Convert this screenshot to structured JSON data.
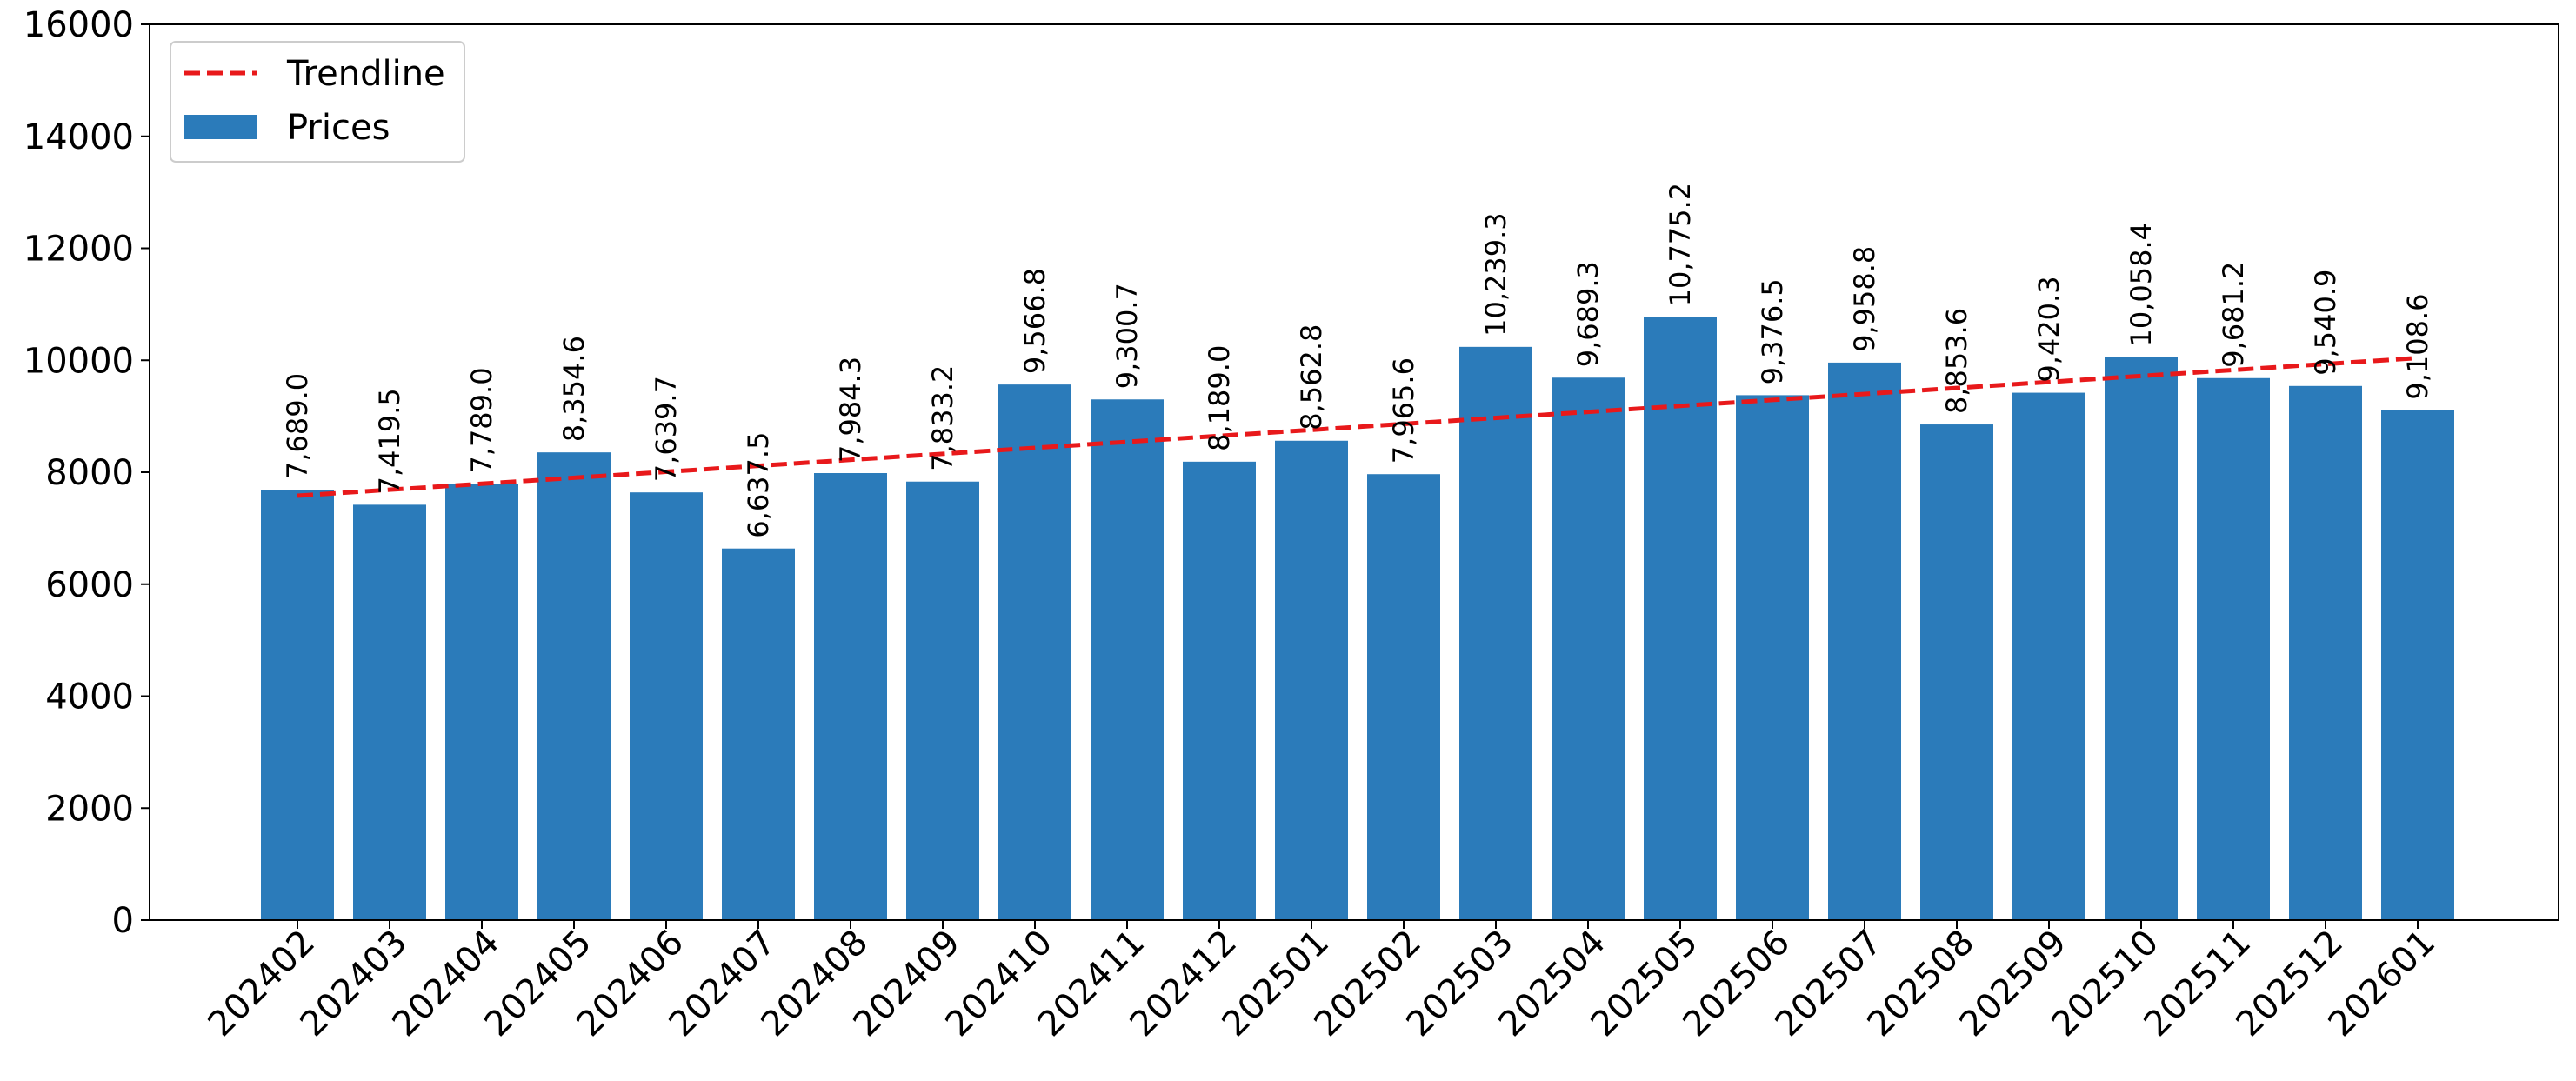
{
  "chart_data": {
    "type": "bar",
    "categories": [
      "202402",
      "202403",
      "202404",
      "202405",
      "202406",
      "202407",
      "202408",
      "202409",
      "202410",
      "202411",
      "202412",
      "202501",
      "202502",
      "202503",
      "202504",
      "202505",
      "202506",
      "202507",
      "202508",
      "202509",
      "202510",
      "202511",
      "202512",
      "202601"
    ],
    "series": [
      {
        "name": "Prices",
        "values": [
          7689.0,
          7419.5,
          7789.0,
          8354.6,
          7639.7,
          6637.5,
          7984.3,
          7833.2,
          9566.8,
          9300.7,
          8189.0,
          8562.8,
          7965.6,
          10239.3,
          9689.3,
          10775.2,
          9376.5,
          9958.8,
          8853.6,
          9420.3,
          10058.4,
          9681.2,
          9540.9,
          9108.6
        ],
        "color": "#2b7bba"
      }
    ],
    "data_labels": [
      "7,689.0",
      "7,419.5",
      "7,789.0",
      "8,354.6",
      "7,639.7",
      "6,637.5",
      "7,984.3",
      "7,833.2",
      "9,566.8",
      "9,300.7",
      "8,189.0",
      "8,562.8",
      "7,965.6",
      "10,239.3",
      "9,689.3",
      "10,775.2",
      "9,376.5",
      "9,958.8",
      "8,853.6",
      "9,420.3",
      "10,058.4",
      "9,681.2",
      "9,540.9",
      "9,108.6"
    ],
    "trendline": {
      "name": "Trendline",
      "start": 7580,
      "end": 10040,
      "color": "#e8191b",
      "style": "dashed"
    },
    "ylim": [
      0,
      16000
    ],
    "yticks": [
      "0",
      "2000",
      "4000",
      "6000",
      "8000",
      "10000",
      "12000",
      "14000",
      "16000"
    ],
    "grid": false,
    "legend_position": "top-left",
    "title": "",
    "xlabel": "",
    "ylabel": ""
  }
}
